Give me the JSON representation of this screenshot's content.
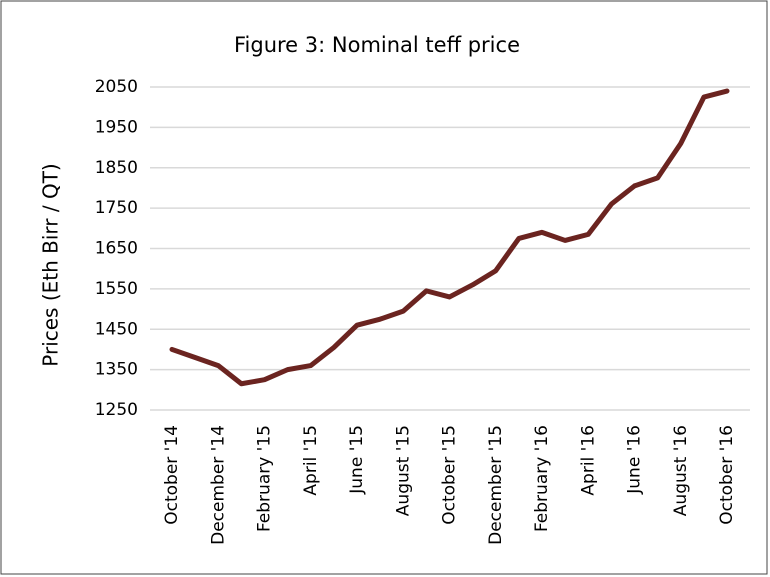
{
  "chart_data": {
    "type": "line",
    "title": "Figure 3: Nominal teff price",
    "y_label": "Prices (Eth Birr / QT)",
    "categories": [
      "October '14",
      null,
      "December '14",
      null,
      "February '15",
      null,
      "April '15",
      null,
      "June '15",
      null,
      "August '15",
      null,
      "October '15",
      null,
      "December '15",
      null,
      "February '16",
      null,
      "April '16",
      null,
      "June '16",
      null,
      "August '16",
      null,
      "October '16"
    ],
    "series": [
      {
        "name": "Nominal teff price",
        "color": "#6b2420",
        "values": [
          1400,
          1380,
          1360,
          1315,
          1325,
          1350,
          1360,
          1405,
          1460,
          1475,
          1495,
          1545,
          1530,
          1560,
          1595,
          1675,
          1690,
          1670,
          1685,
          1760,
          1805,
          1825,
          1910,
          2025,
          2040
        ]
      }
    ],
    "ylim": [
      1250,
      2050
    ],
    "yticks": [
      1250,
      1350,
      1450,
      1550,
      1650,
      1750,
      1850,
      1950,
      2050
    ],
    "grid": true
  }
}
